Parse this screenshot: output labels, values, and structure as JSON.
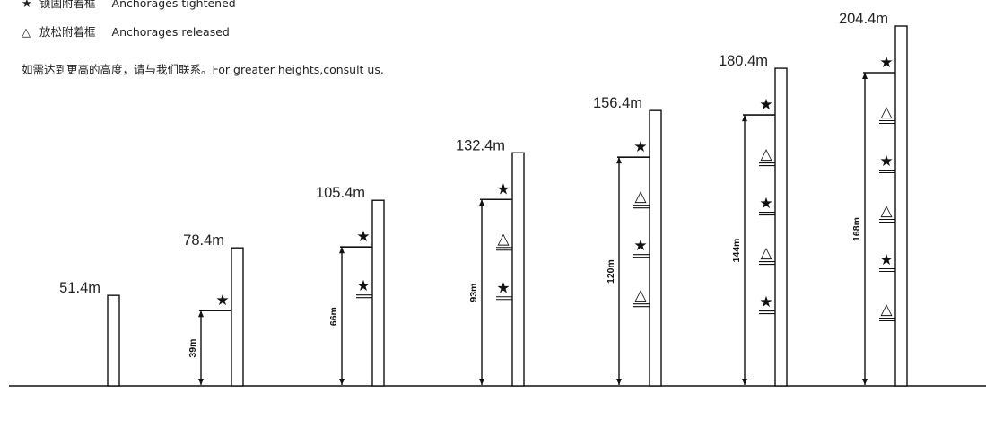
{
  "legend": {
    "tightened": {
      "symbol": "★",
      "cn": "锁固附着框",
      "en": "Anchorages tightened"
    },
    "released": {
      "symbol": "△",
      "cn": "放松附着框",
      "en": "Anchorages released"
    },
    "note": {
      "cn": "如需达到更高的高度，请与我们联系。",
      "en": "For greater heights,consult us."
    }
  },
  "towers": [
    {
      "height_m": 51.4,
      "label": "51.4m",
      "dimension": "",
      "anchors": []
    },
    {
      "height_m": 78.4,
      "label": "78.4m",
      "dimension": "39m",
      "anchors": [
        "tightened"
      ]
    },
    {
      "height_m": 105.4,
      "label": "105.4m",
      "dimension": "66m",
      "anchors": [
        "tightened",
        "tightened"
      ]
    },
    {
      "height_m": 132.4,
      "label": "132.4m",
      "dimension": "93m",
      "anchors": [
        "tightened",
        "released",
        "tightened"
      ]
    },
    {
      "height_m": 156.4,
      "label": "156.4m",
      "dimension": "120m",
      "anchors": [
        "tightened",
        "released",
        "tightened",
        "released"
      ]
    },
    {
      "height_m": 180.4,
      "label": "180.4m",
      "dimension": "144m",
      "anchors": [
        "tightened",
        "released",
        "tightened",
        "released",
        "tightened"
      ]
    },
    {
      "height_m": 204.4,
      "label": "204.4m",
      "dimension": "168m",
      "anchors": [
        "tightened",
        "released",
        "tightened",
        "released",
        "tightened",
        "released"
      ]
    }
  ],
  "colors": {
    "line": "#111111",
    "text": "#222222",
    "background": "#ffffff"
  }
}
